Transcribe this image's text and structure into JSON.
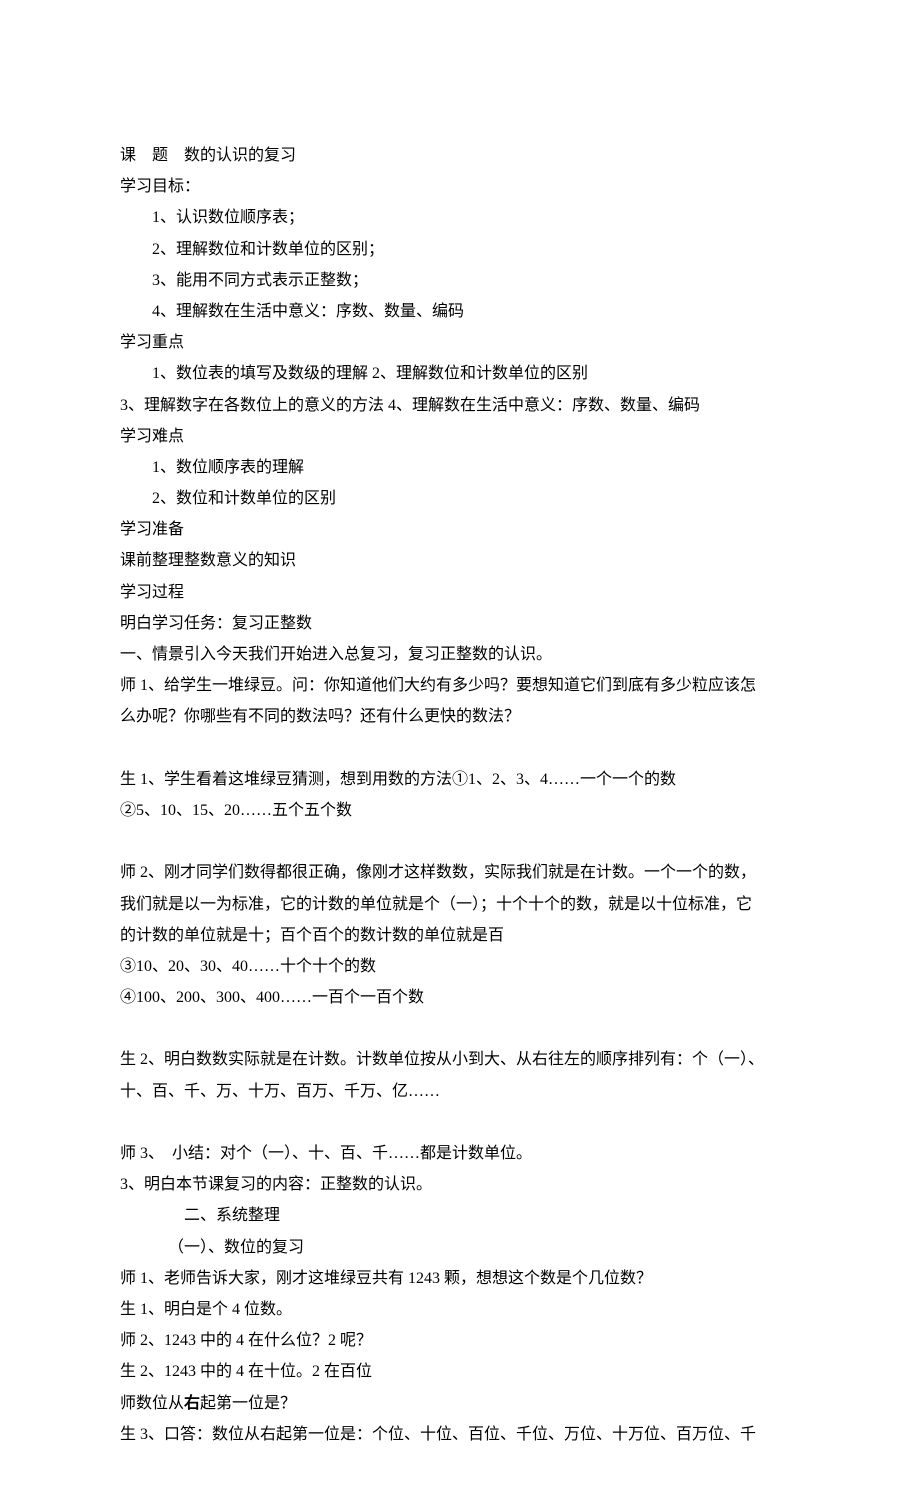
{
  "doc": {
    "title": "课　题　数的认识的复习",
    "goals_heading": "学习目标：",
    "goals": [
      "1、认识数位顺序表；",
      "2、理解数位和计数单位的区别；",
      "3、能用不同方式表示正整数；",
      "4、理解数在生活中意义：序数、数量、编码"
    ],
    "keypoints_heading": "学习重点",
    "keypoints_line1": "1、数位表的填写及数级的理解 2、理解数位和计数单位的区别",
    "keypoints_line2": "3、理解数字在各数位上的意义的方法 4、理解数在生活中意义：序数、数量、编码",
    "difficulties_heading": "学习难点",
    "difficulties": [
      "1、数位顺序表的理解",
      "2、数位和计数单位的区别"
    ],
    "prep_heading": "学习准备",
    "prep_text": "课前整理整数意义的知识",
    "process_heading": "学习过程",
    "task_line": "明白学习任务：复习正整数",
    "section1_heading": "一、情景引入今天我们开始进入总复习，复习正整数的认识。",
    "shi1a": "师 1、给学生一堆绿豆。问：你知道他们大约有多少吗？要想知道它们到底有多少粒应该怎",
    "shi1b": "么办呢？你哪些有不同的数法吗？还有什么更快的数法？",
    "sheng1a": "生 1、学生看着这堆绿豆猜测，想到用数的方法①1、2、3、4……一个一个的数",
    "sheng1b": "②5、10、15、20……五个五个数",
    "shi2a": "师 2、刚才同学们数得都很正确，像刚才这样数数，实际我们就是在计数。一个一个的数，",
    "shi2b": "我们就是以一为标准，它的计数的单位就是个（一）；十个十个的数，就是以十位标准，它",
    "shi2c": "的计数的单位就是十；百个百个的数计数的单位就是百",
    "shi2d": "③10、20、30、40……十个十个的数",
    "shi2e": "④100、200、300、400……一百个一百个数",
    "sheng2a": "生 2、明白数数实际就是在计数。计数单位按从小到大、从右往左的顺序排列有：个（一）、",
    "sheng2b": "十、百、千、万、十万、百万、千万、亿……",
    "shi3": "师 3、　小结：对个（一）、十、百、千……都是计数单位。",
    "pt3": "3、明白本节课复习的内容：正整数的认识。",
    "section2_heading": "二、系统整理",
    "section2_sub": "（一）、数位的复习",
    "shi_q1": "师 1、老师告诉大家，刚才这堆绿豆共有 1243 颗，想想这个数是个几位数？",
    "sheng_a1": "生 1、明白是个 4 位数。",
    "shi_q2": "师 2、1243 中的 4 在什么位？2 呢？",
    "sheng_a2": "生 2、1243 中的 4 在十位。2 在百位",
    "shi_q3_prefix": "师数位从",
    "shi_q3_bold": "右",
    "shi_q3_suffix": "起第一位是？",
    "sheng_a3": "生 3、口答：数位从右起第一位是：个位、十位、百位、千位、万位、十万位、百万位、千"
  }
}
